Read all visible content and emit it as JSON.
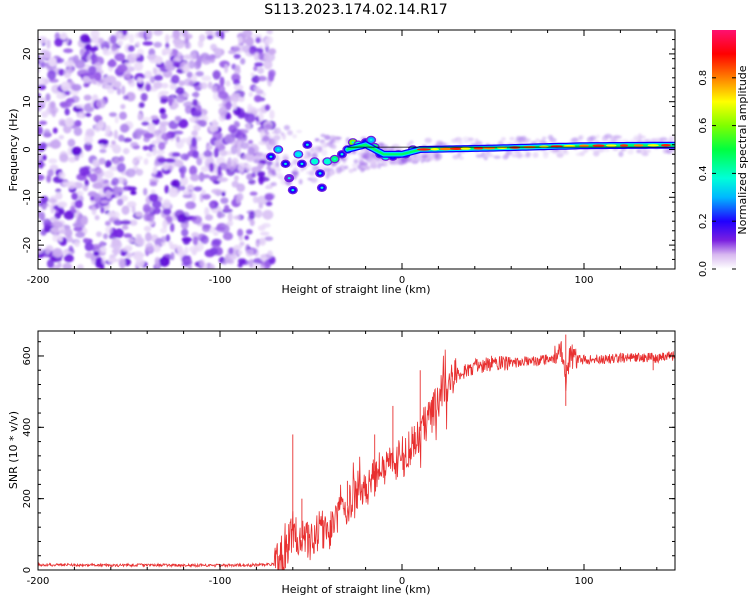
{
  "chart_data": [
    {
      "type": "heatmap",
      "title": "S113.2023.174.02.14.R17",
      "xlabel": "Height of straight line (km)",
      "ylabel": "Frequency (Hz)",
      "xlim": [
        -200,
        150
      ],
      "ylim": [
        -25,
        25
      ],
      "x_ticks": [
        -200,
        -100,
        0,
        100
      ],
      "x_tick_labels": [
        "-200",
        "-100",
        "0",
        "100"
      ],
      "y_ticks": [
        -20,
        -10,
        0,
        10,
        20
      ],
      "y_tick_labels": [
        "-20",
        "-10",
        "0",
        "10",
        "20"
      ],
      "colorbar": {
        "label": "Normalized spectral amplitude",
        "range": [
          0,
          1
        ],
        "ticks": [
          0.0,
          0.2,
          0.4,
          0.6,
          0.8
        ],
        "tick_labels": [
          "0.0",
          "0.2",
          "0.4",
          "0.6",
          "0.8"
        ],
        "colormap": "rainbow-white-to-magenta"
      },
      "features": {
        "noise_region_x": [
          -200,
          -75
        ],
        "transition_region_x": [
          -75,
          -20
        ],
        "carrier_frequency_approx_hz": 0.5,
        "carrier_drift": [
          {
            "x": -75,
            "f": 0.0
          },
          {
            "x": -60,
            "f": -1.5
          },
          {
            "x": -45,
            "f": -2.5
          },
          {
            "x": -30,
            "f": 0.0
          },
          {
            "x": -20,
            "f": 1.0
          },
          {
            "x": -10,
            "f": -1.0
          },
          {
            "x": 0,
            "f": -1.0
          },
          {
            "x": 10,
            "f": 0.0
          },
          {
            "x": 50,
            "f": 0.3
          },
          {
            "x": 100,
            "f": 0.8
          },
          {
            "x": 150,
            "f": 0.9
          }
        ]
      }
    },
    {
      "type": "line",
      "xlabel": "Height of straight line (km)",
      "ylabel": "SNR (10 * v/v)",
      "xlim": [
        -200,
        150
      ],
      "ylim": [
        0,
        670
      ],
      "x_ticks": [
        -200,
        -100,
        0,
        100
      ],
      "x_tick_labels": [
        "-200",
        "-100",
        "0",
        "100"
      ],
      "y_ticks": [
        0,
        200,
        400,
        600
      ],
      "y_tick_labels": [
        "0",
        "200",
        "400",
        "600"
      ],
      "series": [
        {
          "name": "SNR",
          "color": "#e83030",
          "x": [
            -200,
            -180,
            -160,
            -140,
            -120,
            -100,
            -80,
            -70,
            -65,
            -60,
            -55,
            -50,
            -45,
            -40,
            -35,
            -30,
            -25,
            -20,
            -15,
            -10,
            -5,
            0,
            5,
            10,
            15,
            20,
            25,
            30,
            40,
            50,
            60,
            70,
            80,
            85,
            88,
            90,
            92,
            95,
            100,
            110,
            120,
            130,
            140,
            150
          ],
          "values": [
            15,
            14,
            13,
            14,
            13,
            13,
            14,
            15,
            35,
            110,
            90,
            75,
            120,
            100,
            150,
            180,
            200,
            230,
            260,
            290,
            300,
            320,
            350,
            390,
            420,
            480,
            520,
            545,
            570,
            580,
            580,
            585,
            590,
            595,
            610,
            530,
            600,
            595,
            590,
            590,
            595,
            595,
            595,
            600
          ]
        }
      ],
      "spikes": [
        {
          "x": -60,
          "value": 380
        },
        {
          "x": -55,
          "value": 200
        },
        {
          "x": -30,
          "value": 250
        },
        {
          "x": -15,
          "value": 380
        },
        {
          "x": -5,
          "value": 460
        },
        {
          "x": 10,
          "value": 560
        },
        {
          "x": 90,
          "value": 460
        },
        {
          "x": 90,
          "value": 660
        },
        {
          "x": 138,
          "value": 560
        }
      ]
    }
  ]
}
